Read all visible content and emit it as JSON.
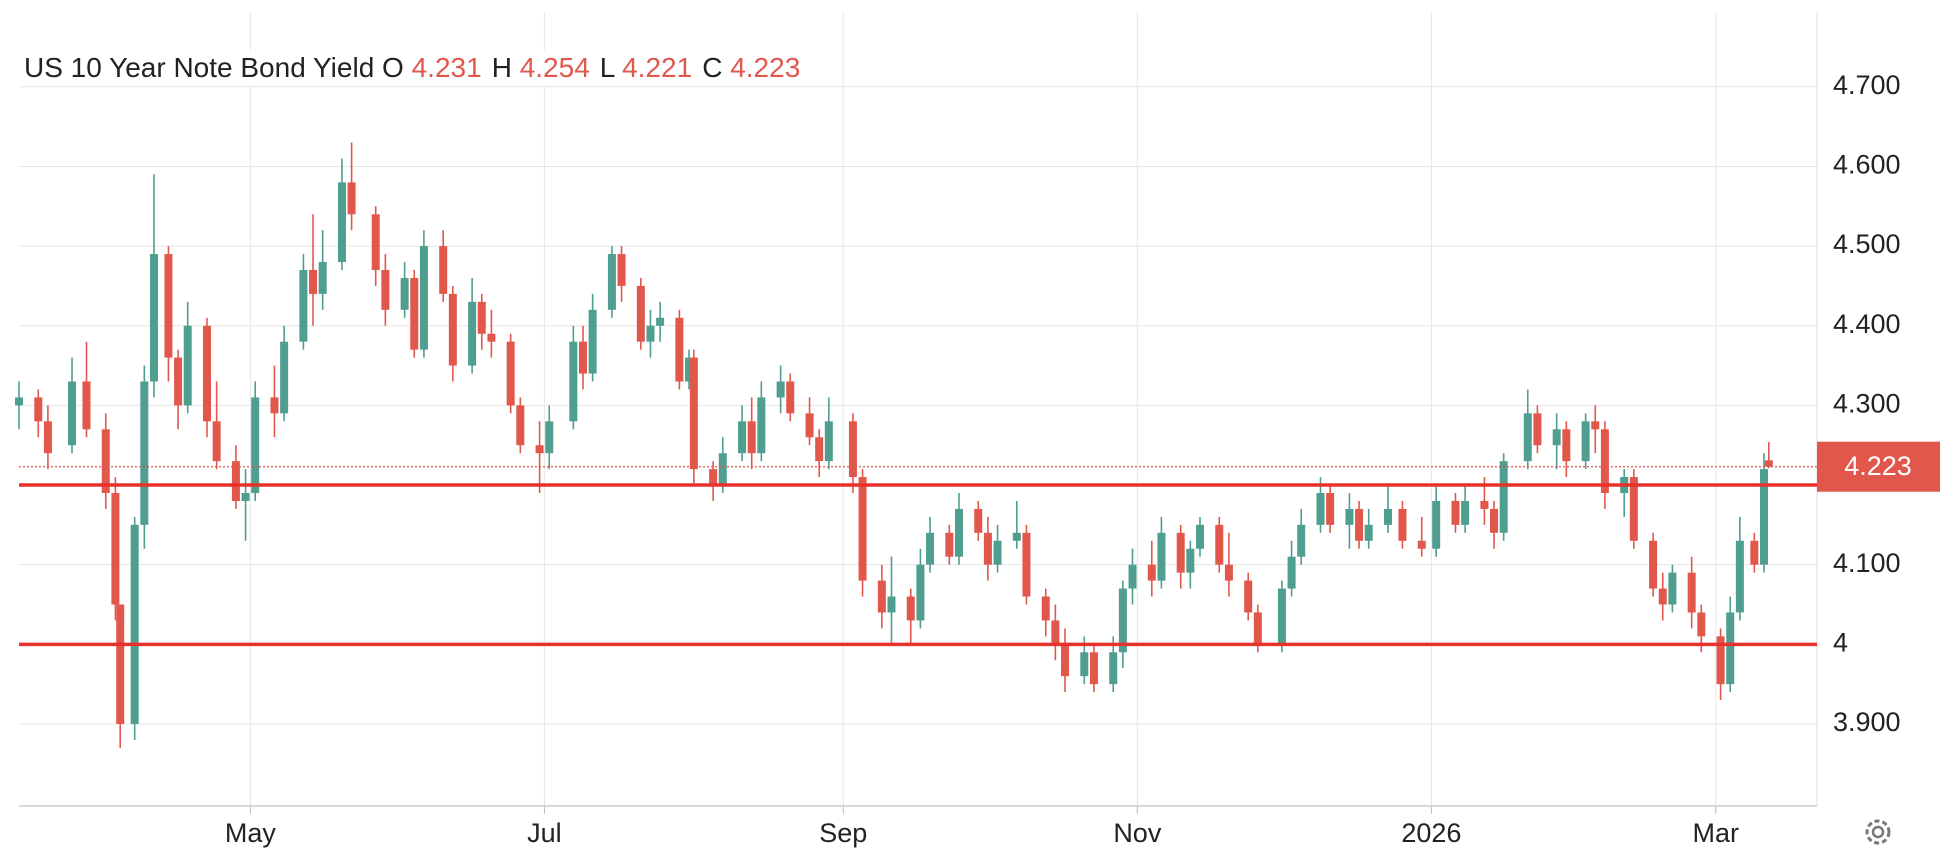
{
  "chart_data": {
    "type": "candlestick",
    "title": "US 10 Year Note Bond Yield",
    "ohlc_labels": [
      "O",
      "H",
      "L",
      "C"
    ],
    "up_color": "#4f9e8f",
    "down_color": "#e2574c",
    "hlines": [
      4.2,
      4.0
    ],
    "hline_color": "#e8312a",
    "ylim": [
      3.797,
      4.809
    ],
    "yticks": [
      {
        "value": 3.9,
        "label": "3.900"
      },
      4,
      {
        "value": 4.1,
        "label": "4.100"
      },
      {
        "value": 4.3,
        "label": "4.300"
      },
      {
        "value": 4.4,
        "label": "4.400"
      },
      {
        "value": 4.5,
        "label": "4.500"
      },
      {
        "value": 4.6,
        "label": "4.600"
      },
      {
        "value": 4.7,
        "label": "4.700"
      }
    ],
    "xlim": [
      "2025-03-14",
      "2026-03-22"
    ],
    "xticks": [
      {
        "value": "2025-05-01",
        "label": "May"
      },
      {
        "value": "2025-07-01",
        "label": "Jul"
      },
      {
        "value": "2025-09-01",
        "label": "Sep"
      },
      {
        "value": "2025-11-01",
        "label": "Nov"
      },
      {
        "value": "2026-01-01",
        "label": "2026"
      },
      {
        "value": "2026-03-01",
        "label": "Mar"
      }
    ],
    "x": [
      "2025-03-14",
      "2025-03-18",
      "2025-03-20",
      "2025-03-25",
      "2025-03-28",
      "2025-04-01",
      "2025-04-03",
      "2025-04-04",
      "2025-04-07",
      "2025-04-09",
      "2025-04-11",
      "2025-04-14",
      "2025-04-16",
      "2025-04-18",
      "2025-04-22",
      "2025-04-24",
      "2025-04-28",
      "2025-04-30",
      "2025-05-02",
      "2025-05-06",
      "2025-05-08",
      "2025-05-12",
      "2025-05-14",
      "2025-05-16",
      "2025-05-20",
      "2025-05-22",
      "2025-05-27",
      "2025-05-29",
      "2025-06-02",
      "2025-06-04",
      "2025-06-06",
      "2025-06-10",
      "2025-06-12",
      "2025-06-16",
      "2025-06-18",
      "2025-06-20",
      "2025-06-24",
      "2025-06-26",
      "2025-06-30",
      "2025-07-02",
      "2025-07-07",
      "2025-07-09",
      "2025-07-11",
      "2025-07-15",
      "2025-07-17",
      "2025-07-21",
      "2025-07-23",
      "2025-07-25",
      "2025-07-29",
      "2025-07-31",
      "2025-08-01",
      "2025-08-05",
      "2025-08-07",
      "2025-08-11",
      "2025-08-13",
      "2025-08-15",
      "2025-08-19",
      "2025-08-21",
      "2025-08-25",
      "2025-08-27",
      "2025-08-29",
      "2025-09-03",
      "2025-09-05",
      "2025-09-09",
      "2025-09-11",
      "2025-09-15",
      "2025-09-17",
      "2025-09-19",
      "2025-09-23",
      "2025-09-25",
      "2025-09-29",
      "2025-10-01",
      "2025-10-03",
      "2025-10-07",
      "2025-10-09",
      "2025-10-13",
      "2025-10-15",
      "2025-10-17",
      "2025-10-21",
      "2025-10-23",
      "2025-10-27",
      "2025-10-29",
      "2025-10-31",
      "2025-11-04",
      "2025-11-06",
      "2025-11-10",
      "2025-11-12",
      "2025-11-14",
      "2025-11-18",
      "2025-11-20",
      "2025-11-24",
      "2025-11-26",
      "2025-12-01",
      "2025-12-03",
      "2025-12-05",
      "2025-12-09",
      "2025-12-11",
      "2025-12-15",
      "2025-12-17",
      "2025-12-19",
      "2025-12-23",
      "2025-12-26",
      "2025-12-30",
      "2026-01-02",
      "2026-01-06",
      "2026-01-08",
      "2026-01-12",
      "2026-01-14",
      "2026-01-16",
      "2026-01-21",
      "2026-01-23",
      "2026-01-27",
      "2026-01-29",
      "2026-02-02",
      "2026-02-04",
      "2026-02-06",
      "2026-02-10",
      "2026-02-12",
      "2026-02-16",
      "2026-02-18",
      "2026-02-20",
      "2026-02-24",
      "2026-02-26",
      "2026-03-02",
      "2026-03-04",
      "2026-03-06",
      "2026-03-09",
      "2026-03-11",
      "2026-03-12"
    ],
    "open": [
      4.3,
      4.31,
      4.28,
      4.25,
      4.33,
      4.27,
      4.19,
      4.05,
      3.9,
      4.15,
      4.33,
      4.49,
      4.36,
      4.3,
      4.4,
      4.28,
      4.23,
      4.18,
      4.19,
      4.31,
      4.29,
      4.38,
      4.47,
      4.44,
      4.48,
      4.58,
      4.54,
      4.47,
      4.42,
      4.46,
      4.37,
      4.5,
      4.44,
      4.35,
      4.43,
      4.39,
      4.38,
      4.3,
      4.25,
      4.24,
      4.28,
      4.38,
      4.34,
      4.42,
      4.49,
      4.45,
      4.38,
      4.4,
      4.41,
      4.33,
      4.36,
      4.22,
      4.2,
      4.24,
      4.28,
      4.24,
      4.31,
      4.33,
      4.29,
      4.26,
      4.23,
      4.28,
      4.21,
      4.08,
      4.04,
      4.06,
      4.03,
      4.1,
      4.14,
      4.11,
      4.17,
      4.14,
      4.1,
      4.13,
      4.14,
      4.06,
      4.03,
      4.0,
      3.96,
      3.99,
      3.95,
      3.99,
      4.07,
      4.1,
      4.08,
      4.14,
      4.09,
      4.12,
      4.15,
      4.1,
      4.08,
      4.04,
      4.0,
      4.07,
      4.11,
      4.15,
      4.19,
      4.15,
      4.17,
      4.13,
      4.15,
      4.17,
      4.13,
      4.12,
      4.18,
      4.15,
      4.18,
      4.17,
      4.14,
      4.23,
      4.29,
      4.25,
      4.27,
      4.23,
      4.28,
      4.27,
      4.19,
      4.21,
      4.13,
      4.07,
      4.05,
      4.09,
      4.04,
      4.01,
      3.95,
      4.04,
      4.13,
      4.1,
      4.231
    ],
    "high": [
      4.33,
      4.32,
      4.3,
      4.36,
      4.38,
      4.29,
      4.21,
      4.05,
      4.16,
      4.35,
      4.59,
      4.5,
      4.37,
      4.43,
      4.41,
      4.33,
      4.25,
      4.22,
      4.33,
      4.35,
      4.4,
      4.49,
      4.54,
      4.52,
      4.61,
      4.63,
      4.55,
      4.49,
      4.48,
      4.47,
      4.52,
      4.52,
      4.45,
      4.46,
      4.44,
      4.42,
      4.39,
      4.31,
      4.28,
      4.3,
      4.4,
      4.4,
      4.44,
      4.5,
      4.5,
      4.46,
      4.42,
      4.43,
      4.42,
      4.37,
      4.37,
      4.23,
      4.26,
      4.3,
      4.31,
      4.33,
      4.35,
      4.34,
      4.31,
      4.27,
      4.31,
      4.29,
      4.22,
      4.1,
      4.11,
      4.07,
      4.12,
      4.16,
      4.15,
      4.19,
      4.18,
      4.16,
      4.15,
      4.18,
      4.15,
      4.07,
      4.05,
      4.02,
      4.01,
      4.0,
      4.01,
      4.08,
      4.12,
      4.13,
      4.16,
      4.15,
      4.13,
      4.16,
      4.16,
      4.14,
      4.09,
      4.05,
      4.08,
      4.13,
      4.17,
      4.21,
      4.2,
      4.19,
      4.18,
      4.17,
      4.2,
      4.18,
      4.16,
      4.2,
      4.19,
      4.2,
      4.21,
      4.18,
      4.24,
      4.32,
      4.3,
      4.29,
      4.28,
      4.29,
      4.3,
      4.28,
      4.22,
      4.22,
      4.14,
      4.09,
      4.1,
      4.11,
      4.05,
      4.02,
      4.06,
      4.16,
      4.14,
      4.24,
      4.254
    ],
    "low": [
      4.27,
      4.26,
      4.22,
      4.24,
      4.26,
      4.17,
      4.03,
      3.87,
      3.88,
      4.12,
      4.31,
      4.33,
      4.27,
      4.29,
      4.26,
      4.22,
      4.17,
      4.13,
      4.18,
      4.26,
      4.28,
      4.37,
      4.4,
      4.42,
      4.47,
      4.52,
      4.45,
      4.4,
      4.41,
      4.36,
      4.36,
      4.43,
      4.33,
      4.34,
      4.37,
      4.36,
      4.29,
      4.24,
      4.19,
      4.22,
      4.27,
      4.32,
      4.33,
      4.41,
      4.43,
      4.37,
      4.36,
      4.38,
      4.32,
      4.32,
      4.2,
      4.18,
      4.19,
      4.23,
      4.22,
      4.23,
      4.29,
      4.28,
      4.25,
      4.21,
      4.22,
      4.19,
      4.06,
      4.02,
      4.0,
      4.0,
      4.02,
      4.09,
      4.1,
      4.1,
      4.13,
      4.08,
      4.09,
      4.12,
      4.05,
      4.01,
      3.98,
      3.94,
      3.95,
      3.94,
      3.94,
      3.97,
      4.05,
      4.06,
      4.07,
      4.07,
      4.07,
      4.11,
      4.09,
      4.06,
      4.03,
      3.99,
      3.99,
      4.06,
      4.1,
      4.14,
      4.14,
      4.12,
      4.12,
      4.12,
      4.14,
      4.12,
      4.11,
      4.11,
      4.14,
      4.14,
      4.15,
      4.12,
      4.13,
      4.22,
      4.24,
      4.22,
      4.21,
      4.22,
      4.24,
      4.17,
      4.16,
      4.12,
      4.06,
      4.03,
      4.04,
      4.02,
      3.99,
      3.93,
      3.94,
      4.03,
      4.09,
      4.09,
      4.221
    ],
    "close": [
      4.31,
      4.28,
      4.24,
      4.33,
      4.27,
      4.19,
      4.05,
      3.9,
      4.15,
      4.33,
      4.49,
      4.36,
      4.3,
      4.4,
      4.28,
      4.23,
      4.18,
      4.19,
      4.31,
      4.29,
      4.38,
      4.47,
      4.44,
      4.48,
      4.58,
      4.54,
      4.47,
      4.42,
      4.46,
      4.37,
      4.5,
      4.44,
      4.35,
      4.43,
      4.39,
      4.38,
      4.3,
      4.25,
      4.24,
      4.28,
      4.38,
      4.34,
      4.42,
      4.49,
      4.45,
      4.38,
      4.4,
      4.41,
      4.33,
      4.36,
      4.22,
      4.2,
      4.24,
      4.28,
      4.24,
      4.31,
      4.33,
      4.29,
      4.26,
      4.23,
      4.28,
      4.21,
      4.08,
      4.04,
      4.06,
      4.03,
      4.1,
      4.14,
      4.11,
      4.17,
      4.14,
      4.1,
      4.13,
      4.14,
      4.06,
      4.03,
      4.0,
      3.96,
      3.99,
      3.95,
      3.99,
      4.07,
      4.1,
      4.08,
      4.14,
      4.09,
      4.12,
      4.15,
      4.1,
      4.08,
      4.04,
      4.0,
      4.07,
      4.11,
      4.15,
      4.19,
      4.15,
      4.17,
      4.13,
      4.15,
      4.17,
      4.13,
      4.12,
      4.18,
      4.15,
      4.18,
      4.17,
      4.14,
      4.23,
      4.29,
      4.25,
      4.27,
      4.23,
      4.28,
      4.27,
      4.19,
      4.21,
      4.13,
      4.07,
      4.05,
      4.09,
      4.04,
      4.01,
      3.95,
      4.04,
      4.13,
      4.1,
      4.22,
      4.223
    ]
  }
}
